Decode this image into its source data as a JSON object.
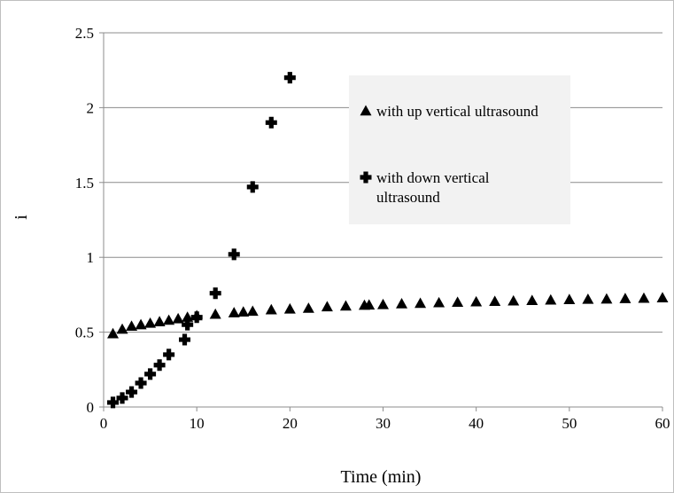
{
  "chart_data": {
    "type": "scatter",
    "title": "",
    "xlabel": "Time (min)",
    "ylabel": "i",
    "xlim": [
      0,
      60
    ],
    "ylim": [
      0,
      2.5
    ],
    "x_ticks": [
      0,
      10,
      20,
      30,
      40,
      50,
      60
    ],
    "y_ticks": [
      0,
      0.5,
      1,
      1.5,
      2,
      2.5
    ],
    "x_tick_labels": [
      "0",
      "10",
      "20",
      "30",
      "40",
      "50",
      "60"
    ],
    "y_tick_labels": [
      "0",
      "0.5",
      "1",
      "1.5",
      "2",
      "2.5"
    ],
    "grid": "horizontal",
    "legend_position": "top-right",
    "legend_background": "#f2f2f2",
    "marker_color": "#000000",
    "series": [
      {
        "name": "with up vertical ultrasound",
        "marker": "triangle-icon",
        "points": [
          [
            1,
            0.49
          ],
          [
            2,
            0.52
          ],
          [
            3,
            0.54
          ],
          [
            4,
            0.55
          ],
          [
            5,
            0.56
          ],
          [
            6,
            0.57
          ],
          [
            7,
            0.58
          ],
          [
            8,
            0.59
          ],
          [
            9,
            0.6
          ],
          [
            10,
            0.61
          ],
          [
            12,
            0.62
          ],
          [
            14,
            0.63
          ],
          [
            15,
            0.635
          ],
          [
            16,
            0.64
          ],
          [
            18,
            0.65
          ],
          [
            20,
            0.655
          ],
          [
            22,
            0.66
          ],
          [
            24,
            0.67
          ],
          [
            26,
            0.675
          ],
          [
            28,
            0.68
          ],
          [
            28.5,
            0.682
          ],
          [
            30,
            0.685
          ],
          [
            32,
            0.69
          ],
          [
            34,
            0.693
          ],
          [
            36,
            0.697
          ],
          [
            38,
            0.7
          ],
          [
            40,
            0.703
          ],
          [
            42,
            0.706
          ],
          [
            44,
            0.709
          ],
          [
            46,
            0.712
          ],
          [
            48,
            0.715
          ],
          [
            50,
            0.718
          ],
          [
            52,
            0.72
          ],
          [
            54,
            0.722
          ],
          [
            56,
            0.725
          ],
          [
            58,
            0.727
          ],
          [
            60,
            0.73
          ]
        ]
      },
      {
        "name": "with down vertical ultrasound",
        "marker": "plus-icon",
        "points": [
          [
            1,
            0.03
          ],
          [
            2,
            0.06
          ],
          [
            3,
            0.1
          ],
          [
            4,
            0.16
          ],
          [
            5,
            0.22
          ],
          [
            6,
            0.28
          ],
          [
            7,
            0.35
          ],
          [
            8.7,
            0.45
          ],
          [
            9,
            0.55
          ],
          [
            10,
            0.6
          ],
          [
            12,
            0.76
          ],
          [
            14,
            1.02
          ],
          [
            16,
            1.47
          ],
          [
            18,
            1.9
          ],
          [
            20,
            2.2
          ]
        ]
      }
    ]
  }
}
